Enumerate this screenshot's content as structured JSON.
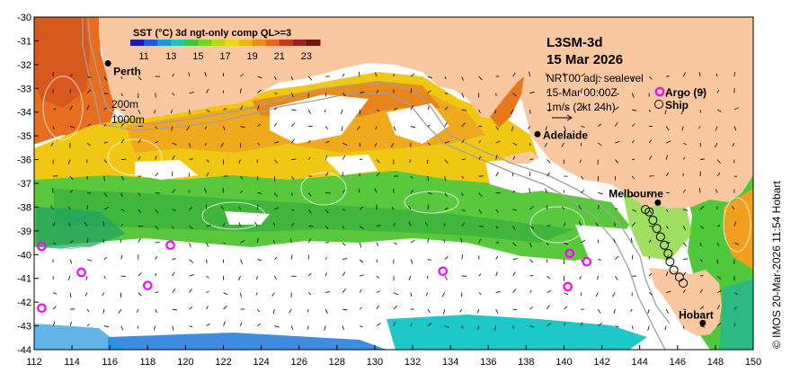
{
  "map": {
    "product": "L3SM-3d",
    "date": "15 Mar 2026",
    "colorbar": {
      "title": "SST (°C) 3d ngt-only comp QL>=3",
      "ticks": [
        11,
        13,
        15,
        17,
        19,
        21,
        23
      ],
      "range": [
        10,
        24
      ],
      "colors": [
        "#1a1ab4",
        "#1e5ae6",
        "#1e96dc",
        "#1ec8b4",
        "#3cc83c",
        "#78d21e",
        "#b4dc14",
        "#e6dc14",
        "#f0b414",
        "#f08c14",
        "#e6641e",
        "#c83c1e",
        "#a01e1e",
        "#781414"
      ]
    },
    "current_info": {
      "line1": "NRT00 adj. sealevel",
      "line2": "15-Mar 00:00Z",
      "line3": "1m/s (2kt 24h)"
    },
    "legend": {
      "argo": "Argo (9)",
      "ship": "Ship",
      "argo_color": "#ff00ff"
    },
    "contours": {
      "c200": "200m",
      "c1000": "1000m"
    },
    "credit": "© IMOS 20-Mar-2026 11:54 Hobart",
    "lon_ticks": [
      "112",
      "114",
      "116",
      "118",
      "120",
      "122",
      "124",
      "126",
      "128",
      "130",
      "132",
      "134",
      "136",
      "138",
      "140",
      "142",
      "144",
      "146",
      "148",
      "150"
    ],
    "lat_ticks": [
      "-30",
      "-31",
      "-32",
      "-33",
      "-34",
      "-35",
      "-36",
      "-37",
      "-38",
      "-39",
      "-40",
      "-41",
      "-42",
      "-43",
      "-44"
    ],
    "lon_range": [
      112,
      150
    ],
    "lat_range": [
      -30,
      -44
    ],
    "cities": [
      {
        "name": "Perth",
        "lon": 115.9,
        "lat": -31.95
      },
      {
        "name": "Adelaide",
        "lon": 138.6,
        "lat": -34.93
      },
      {
        "name": "Melbourne",
        "lon": 144.96,
        "lat": -37.81
      },
      {
        "name": "Hobart",
        "lon": 147.33,
        "lat": -42.88
      }
    ],
    "argo_floats": [
      {
        "lon": 112.4,
        "lat": -39.65
      },
      {
        "lon": 114.5,
        "lat": -40.75
      },
      {
        "lon": 118.0,
        "lat": -41.3
      },
      {
        "lon": 119.2,
        "lat": -39.6
      },
      {
        "lon": 112.4,
        "lat": -42.25
      },
      {
        "lon": 133.6,
        "lat": -40.7
      },
      {
        "lon": 140.3,
        "lat": -39.95
      },
      {
        "lon": 141.2,
        "lat": -40.3
      },
      {
        "lon": 140.2,
        "lat": -41.35
      }
    ],
    "ship_track": [
      {
        "lon": 144.3,
        "lat": -38.1
      },
      {
        "lon": 144.5,
        "lat": -38.2
      },
      {
        "lon": 144.7,
        "lat": -38.55
      },
      {
        "lon": 144.9,
        "lat": -38.9
      },
      {
        "lon": 145.1,
        "lat": -39.25
      },
      {
        "lon": 145.3,
        "lat": -39.6
      },
      {
        "lon": 145.5,
        "lat": -39.95
      },
      {
        "lon": 145.6,
        "lat": -40.3
      },
      {
        "lon": 145.8,
        "lat": -40.65
      },
      {
        "lon": 146.1,
        "lat": -40.95
      },
      {
        "lon": 146.3,
        "lat": -41.2
      }
    ]
  }
}
